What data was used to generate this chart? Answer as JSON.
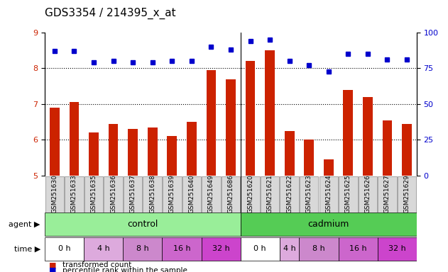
{
  "title": "GDS3354 / 214395_x_at",
  "samples": [
    "GSM251630",
    "GSM251633",
    "GSM251635",
    "GSM251636",
    "GSM251637",
    "GSM251638",
    "GSM251639",
    "GSM251640",
    "GSM251649",
    "GSM251686",
    "GSM251620",
    "GSM251621",
    "GSM251622",
    "GSM251623",
    "GSM251624",
    "GSM251625",
    "GSM251626",
    "GSM251627",
    "GSM251629"
  ],
  "bar_values": [
    6.9,
    7.05,
    6.2,
    6.45,
    6.3,
    6.35,
    6.1,
    6.5,
    7.95,
    7.7,
    8.2,
    8.5,
    6.25,
    6.0,
    5.45,
    7.4,
    7.2,
    6.55,
    6.45
  ],
  "dot_values": [
    87,
    87,
    79,
    80,
    79,
    79,
    80,
    80,
    90,
    88,
    94,
    95,
    80,
    77,
    73,
    85,
    85,
    81,
    81
  ],
  "ylim_left": [
    5,
    9
  ],
  "ylim_right": [
    0,
    100
  ],
  "yticks_left": [
    5,
    6,
    7,
    8,
    9
  ],
  "yticks_right": [
    0,
    25,
    50,
    75,
    100
  ],
  "bar_color": "#cc2200",
  "dot_color": "#0000cc",
  "agent_control_label": "control",
  "agent_cadmium_label": "cadmium",
  "agent_label": "agent",
  "time_label": "time",
  "time_labels_control": [
    "0 h",
    "4 h",
    "8 h",
    "16 h",
    "32 h"
  ],
  "time_labels_cadmium": [
    "0 h",
    "4 h",
    "8 h",
    "16 h",
    "32 h"
  ],
  "control_color": "#99ee99",
  "cadmium_color": "#55cc55",
  "time_colors_control": [
    "#ffffff",
    "#ddaadd",
    "#cc88cc",
    "#cc66cc",
    "#cc44cc"
  ],
  "time_colors_cadmium": [
    "#ffffff",
    "#ddaadd",
    "#cc88cc",
    "#cc66cc",
    "#cc44cc"
  ],
  "legend_bar_label": "transformed count",
  "legend_dot_label": "percentile rank within the sample",
  "n_control": 10,
  "n_cadmium": 9,
  "time_ctrl_widths": [
    2,
    2,
    2,
    2,
    2
  ],
  "time_cad_widths": [
    2,
    1,
    2,
    2,
    2
  ],
  "title_fontsize": 11,
  "tick_label_size": 7,
  "sample_label_fontsize": 6.5,
  "label_box_color": "#d8d8d8"
}
